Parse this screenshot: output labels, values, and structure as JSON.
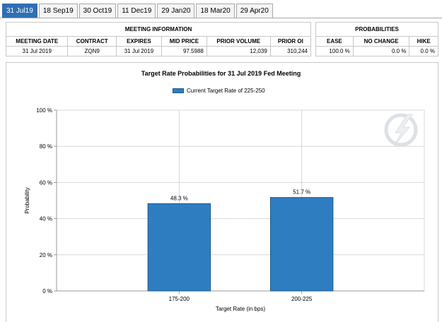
{
  "tabs": [
    {
      "label": "31 Jul19",
      "active": true
    },
    {
      "label": "18 Sep19",
      "active": false
    },
    {
      "label": "30 Oct19",
      "active": false
    },
    {
      "label": "11 Dec19",
      "active": false
    },
    {
      "label": "29 Jan20",
      "active": false
    },
    {
      "label": "18 Mar20",
      "active": false
    },
    {
      "label": "29 Apr20",
      "active": false
    }
  ],
  "meeting_info": {
    "title": "MEETING INFORMATION",
    "headers": [
      "MEETING DATE",
      "CONTRACT",
      "EXPIRES",
      "MID PRICE",
      "PRIOR VOLUME",
      "PRIOR OI"
    ],
    "values": [
      "31 Jul 2019",
      "ZQN9",
      "31 Jul 2019",
      "97.5988",
      "12,039",
      "310,244"
    ]
  },
  "probabilities": {
    "title": "PROBABILITIES",
    "headers": [
      "EASE",
      "NO CHANGE",
      "HIKE"
    ],
    "values": [
      "100.0 %",
      "0.0 %",
      "0.0 %"
    ]
  },
  "colors": {
    "tab_active": "#2f6fb3",
    "bar": "#2f7dc1",
    "bar_border": "#1e5a8e",
    "grid": "#d8d8d8"
  },
  "logo_icon": "lightning-watermark-icon",
  "chart_data": {
    "type": "bar",
    "title": "Target Rate Probabilities for 31 Jul 2019 Fed Meeting",
    "legend": "Current Target Rate of 225-250",
    "legend_position": "top-center",
    "xlabel": "Target Rate (in bps)",
    "ylabel": "Probability",
    "categories": [
      "175-200",
      "200-225"
    ],
    "values": [
      48.3,
      51.7
    ],
    "data_labels": [
      "48.3 %",
      "51.7 %"
    ],
    "ylim": [
      0,
      100
    ],
    "yticks": [
      0,
      20,
      40,
      60,
      80,
      100
    ],
    "ytick_labels": [
      "0 %",
      "20 %",
      "40 %",
      "60 %",
      "80 %",
      "100 %"
    ],
    "grid": true
  }
}
